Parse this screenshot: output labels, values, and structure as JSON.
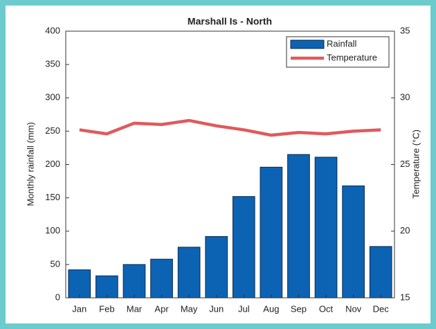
{
  "chart_data": {
    "type": "bar",
    "title": "Marshall Is - North",
    "categories": [
      "Jan",
      "Feb",
      "Mar",
      "Apr",
      "May",
      "Jun",
      "Jul",
      "Aug",
      "Sep",
      "Oct",
      "Nov",
      "Dec"
    ],
    "series": [
      {
        "name": "Rainfall",
        "type": "bar",
        "color": "#0c63b4",
        "values": [
          42,
          33,
          50,
          58,
          76,
          92,
          152,
          196,
          215,
          211,
          168,
          77
        ]
      },
      {
        "name": "Temperature",
        "type": "line",
        "axis": "y2",
        "color": "#e05a5c",
        "values": [
          27.6,
          27.3,
          28.1,
          28.0,
          28.3,
          27.9,
          27.6,
          27.2,
          27.4,
          27.3,
          27.5,
          27.6
        ]
      }
    ],
    "ylabel": "Monthly rainfall (mm)",
    "y2label": "Temperature (°C)",
    "ylim": [
      0,
      400
    ],
    "yticks": [
      0,
      50,
      100,
      150,
      200,
      250,
      300,
      350,
      400
    ],
    "y2lim": [
      15,
      35
    ],
    "y2ticks": [
      15,
      20,
      25,
      30,
      35
    ],
    "legend": "upper right"
  }
}
